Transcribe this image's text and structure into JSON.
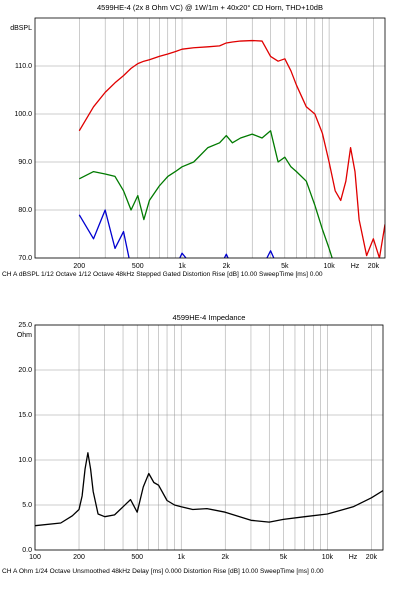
{
  "chart_data": [
    {
      "type": "line",
      "title": "4599HE-4 (2x 8 Ohm VC) @ 1W/1m + 40x20° CD Horn, THD+10dB",
      "ylabel": "dBSPL",
      "xlabel": "Hz",
      "footer": "CH A   dBSPL   1/12 Octave   1/12 Octave   48kHz   Stepped   Gated   Distortion Rise [dB] 10.00   SweepTime [ms] 0.00",
      "xscale": "log",
      "grid": true,
      "xlim": [
        100,
        24000
      ],
      "ylim": [
        70,
        120
      ],
      "xticks": [
        200,
        500,
        {
          "value": 1000,
          "label": "1k"
        },
        {
          "value": 2000,
          "label": "2k"
        },
        {
          "value": 5000,
          "label": "5k"
        },
        {
          "value": 10000,
          "label": "10k"
        },
        {
          "value": 20000,
          "label": "20k"
        }
      ],
      "minor_xticks": [
        300,
        400,
        600,
        700,
        800,
        900,
        3000,
        4000,
        6000,
        7000,
        8000,
        9000
      ],
      "yticks": [
        {
          "value": 70,
          "label": "70.0"
        },
        {
          "value": 80,
          "label": "80.0"
        },
        {
          "value": 90,
          "label": "90.0"
        },
        {
          "value": 100,
          "label": "100.0"
        },
        {
          "value": 110,
          "label": "110.0"
        }
      ],
      "x": [
        200,
        250,
        300,
        350,
        400,
        450,
        500,
        550,
        600,
        700,
        800,
        900,
        1000,
        1200,
        1500,
        1800,
        2000,
        2200,
        2500,
        3000,
        3500,
        4000,
        4500,
        5000,
        5500,
        6000,
        7000,
        8000,
        9000,
        10000,
        11000,
        12000,
        13000,
        14000,
        15000,
        16000,
        18000,
        20000,
        22000,
        24000
      ],
      "series": [
        {
          "color": "#e00000",
          "values": [
            96.5,
            101.5,
            104.5,
            106.5,
            108,
            109.5,
            110.5,
            111,
            111.3,
            112,
            112.5,
            113,
            113.5,
            113.8,
            114,
            114.2,
            114.8,
            115,
            115.2,
            115.3,
            115.2,
            112,
            111,
            111.5,
            109,
            106,
            101.5,
            100,
            96,
            90,
            84,
            82,
            86,
            93,
            88,
            78,
            70.5,
            74,
            70,
            77
          ]
        },
        {
          "color": "#007a00",
          "values": [
            86.5,
            88,
            87.5,
            87,
            84,
            80,
            83,
            78,
            82,
            85,
            87,
            88,
            89,
            90,
            93,
            94,
            95.5,
            94,
            95,
            95.8,
            95,
            96.5,
            90,
            91,
            89,
            88,
            86,
            81,
            76,
            72,
            68,
            null,
            null,
            null,
            null,
            null,
            null,
            null,
            null,
            null
          ]
        },
        {
          "color": "#0000d0",
          "values": [
            79,
            74,
            80,
            72,
            75.5,
            68,
            62,
            null,
            null,
            null,
            null,
            68,
            71,
            68,
            null,
            68,
            70.8,
            68,
            null,
            null,
            68,
            71.5,
            68,
            null,
            null,
            null,
            null,
            null,
            null,
            null,
            null,
            null,
            null,
            null,
            null,
            null,
            null,
            null,
            null,
            null
          ]
        }
      ]
    },
    {
      "type": "line",
      "title": "4599HE-4 Impedance",
      "ylabel": "Ohm",
      "xlabel": "Hz",
      "footer": "CH A   Ohm   1/24 Octave   Unsmoothed   48kHz   Delay [ms] 0.000   Distortion Rise [dB] 10.00   SweepTime [ms] 0.00",
      "xscale": "log",
      "grid": true,
      "xlim": [
        100,
        24000
      ],
      "ylim": [
        0,
        25
      ],
      "xticks": [
        100,
        200,
        500,
        {
          "value": 1000,
          "label": "1k"
        },
        {
          "value": 2000,
          "label": "2k"
        },
        {
          "value": 5000,
          "label": "5k"
        },
        {
          "value": 10000,
          "label": "10k"
        },
        {
          "value": 20000,
          "label": "20k"
        }
      ],
      "minor_xticks": [
        300,
        400,
        600,
        700,
        800,
        900,
        3000,
        4000,
        6000,
        7000,
        8000,
        9000
      ],
      "yticks": [
        {
          "value": 0,
          "label": "0.0"
        },
        {
          "value": 5,
          "label": "5.0"
        },
        {
          "value": 10,
          "label": "10.0"
        },
        {
          "value": 15,
          "label": "15.0"
        },
        {
          "value": 20,
          "label": "20.0"
        },
        {
          "value": 25,
          "label": "25.0"
        }
      ],
      "x": [
        100,
        150,
        180,
        200,
        210,
        220,
        230,
        240,
        250,
        270,
        300,
        350,
        400,
        450,
        500,
        550,
        600,
        650,
        700,
        800,
        900,
        1000,
        1200,
        1500,
        2000,
        3000,
        4000,
        5000,
        7000,
        10000,
        15000,
        20000,
        24000
      ],
      "series": [
        {
          "color": "#000000",
          "values": [
            2.7,
            3.0,
            3.8,
            4.5,
            6,
            9,
            10.8,
            9,
            6.5,
            4,
            3.7,
            3.9,
            4.8,
            5.6,
            4.2,
            7,
            8.5,
            7.5,
            7.2,
            5.5,
            5,
            4.8,
            4.5,
            4.6,
            4.2,
            3.3,
            3.1,
            3.4,
            3.7,
            4.0,
            4.8,
            5.8,
            6.6
          ]
        }
      ]
    }
  ]
}
